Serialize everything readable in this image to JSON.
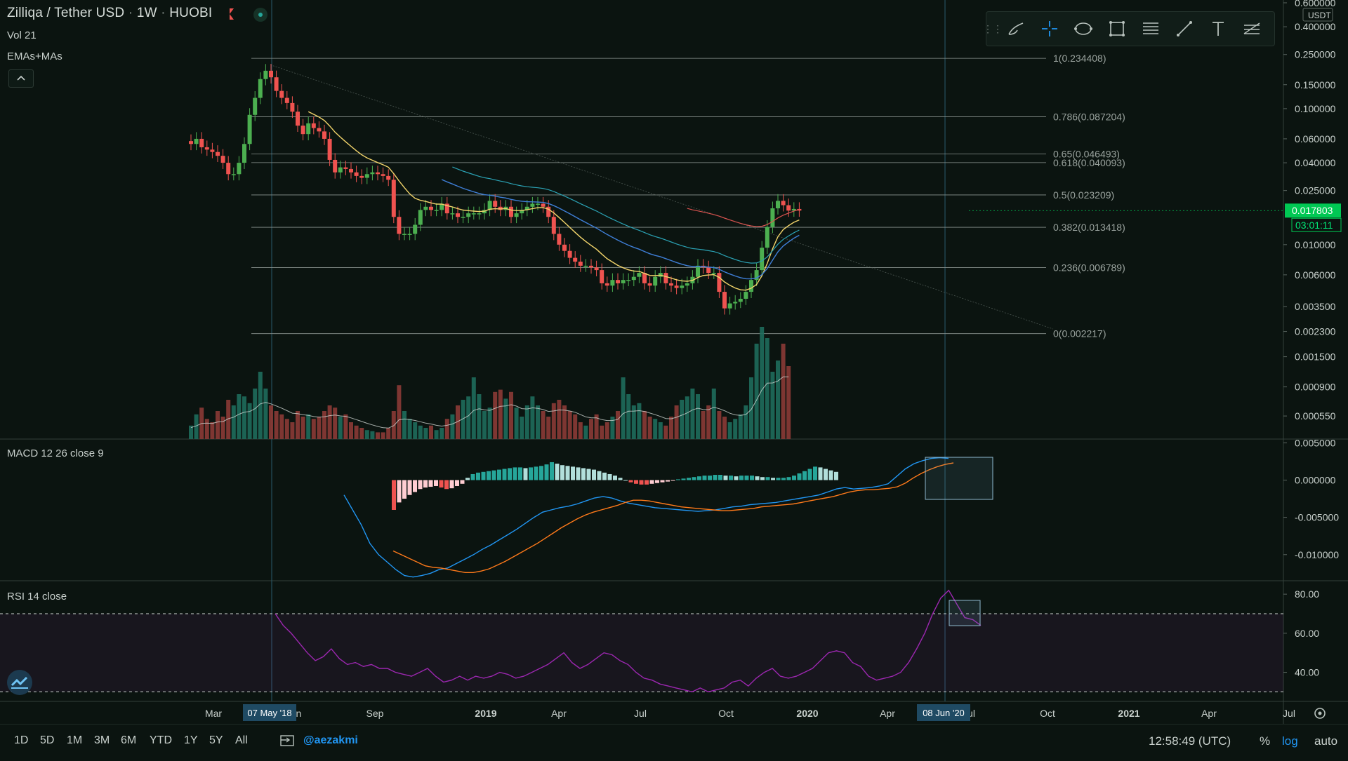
{
  "header": {
    "symbol": "Zilliqa / Tether USD",
    "interval": "1W",
    "exchange": "HUOBI",
    "sep": "·",
    "volume_legend": "Vol 21",
    "ma_legend": "EMAs+MAs",
    "collapse_icon": "^"
  },
  "toolbar": {
    "tools": [
      "brush-icon",
      "crosshair-icon",
      "ellipse-icon",
      "rectangle-icon",
      "fib-lines-icon",
      "trend-line-icon",
      "text-icon",
      "path-icon"
    ]
  },
  "price_axis": {
    "currency": "USDT",
    "labels": [
      "0.600000",
      "0.400000",
      "0.250000",
      "0.150000",
      "0.100000",
      "0.060000",
      "0.040000",
      "0.025000",
      "0.010000",
      "0.006000",
      "0.003500",
      "0.002300",
      "0.001500",
      "0.000900",
      "0.000550"
    ],
    "last_price": "0.017803",
    "countdown": "03:01:11",
    "last_price_color": "#00c853"
  },
  "macd": {
    "legend": "MACD 12 26 close 9",
    "axis_labels": [
      "0.005000",
      "0.000000",
      "-0.005000",
      "-0.010000"
    ]
  },
  "rsi": {
    "legend": "RSI 14 close",
    "axis_labels": [
      "80.00",
      "60.00",
      "40.00"
    ]
  },
  "time_axis": {
    "labels": [
      "Mar",
      "Jun",
      "Sep",
      "2019",
      "Apr",
      "Jul",
      "Oct",
      "2020",
      "Apr",
      "Jul",
      "Oct",
      "2021",
      "Apr",
      "Jul"
    ],
    "highlight_left": "07 May '18",
    "highlight_right": "08 Jun '20"
  },
  "bottom_bar": {
    "timeframes": [
      "1D",
      "5D",
      "1M",
      "3M",
      "6M",
      "YTD",
      "1Y",
      "5Y",
      "All"
    ],
    "author": "@aezakmi",
    "clock": "12:58:49 (UTC)",
    "percent": "%",
    "log": "log",
    "auto": "auto"
  },
  "colors": {
    "background": "#0b1410",
    "up": "#4caf50",
    "down": "#ef5350",
    "volume_up": "#1e6b5c",
    "volume_down": "#8b3a36",
    "ema_fast": "#f2d46b",
    "ma_blue": "#3f7fd8",
    "ma_teal": "#2ba3b5",
    "ma_red": "#d9534f",
    "macd_line": "#2196f3",
    "signal_line": "#ff7a1a",
    "rsi_line": "#9c27b0",
    "accent": "#2196f3"
  },
  "chart_data": [
    {
      "type": "candlestick",
      "scale": "log",
      "ylim": [
        0.00045,
        0.6
      ],
      "fib_levels": [
        {
          "ratio": "1",
          "price": 0.234408,
          "label": "1(0.234408)"
        },
        {
          "ratio": "0.786",
          "price": 0.087204,
          "label": "0.786(0.087204)"
        },
        {
          "ratio": "0.65",
          "price": 0.046493,
          "label": "0.65(0.046493)"
        },
        {
          "ratio": "0.618",
          "price": 0.040093,
          "label": "0.618(0.040093)"
        },
        {
          "ratio": "0.5",
          "price": 0.023209,
          "label": "0.5(0.023209)"
        },
        {
          "ratio": "0.382",
          "price": 0.013418,
          "label": "0.382(0.013418)"
        },
        {
          "ratio": "0.236",
          "price": 0.006789,
          "label": "0.236(0.006789)"
        },
        {
          "ratio": "0",
          "price": 0.002217,
          "label": "0(0.002217)"
        }
      ],
      "close_prices": [
        0.055,
        0.06,
        0.052,
        0.05,
        0.048,
        0.045,
        0.04,
        0.033,
        0.033,
        0.04,
        0.055,
        0.09,
        0.12,
        0.165,
        0.19,
        0.17,
        0.135,
        0.12,
        0.11,
        0.095,
        0.075,
        0.065,
        0.078,
        0.072,
        0.068,
        0.06,
        0.042,
        0.034,
        0.037,
        0.036,
        0.034,
        0.032,
        0.031,
        0.033,
        0.034,
        0.033,
        0.032,
        0.03,
        0.016,
        0.012,
        0.012,
        0.012,
        0.014,
        0.018,
        0.019,
        0.018,
        0.018,
        0.02,
        0.017,
        0.017,
        0.016,
        0.016,
        0.017,
        0.017,
        0.017,
        0.018,
        0.021,
        0.019,
        0.018,
        0.019,
        0.016,
        0.017,
        0.018,
        0.019,
        0.02,
        0.02,
        0.019,
        0.016,
        0.012,
        0.01,
        0.009,
        0.008,
        0.0075,
        0.007,
        0.007,
        0.0068,
        0.0065,
        0.0052,
        0.005,
        0.0055,
        0.0052,
        0.0055,
        0.0055,
        0.0058,
        0.0062,
        0.0052,
        0.005,
        0.0058,
        0.0062,
        0.0052,
        0.005,
        0.0048,
        0.005,
        0.0052,
        0.0058,
        0.007,
        0.0068,
        0.0062,
        0.0062,
        0.0045,
        0.0034,
        0.0037,
        0.0038,
        0.004,
        0.0045,
        0.0055,
        0.0065,
        0.0095,
        0.0135,
        0.0185,
        0.021,
        0.0195,
        0.0178,
        0.0183,
        0.0178
      ],
      "volume_relative": [
        0.12,
        0.22,
        0.28,
        0.18,
        0.15,
        0.25,
        0.2,
        0.35,
        0.3,
        0.4,
        0.38,
        0.32,
        0.45,
        0.6,
        0.45,
        0.3,
        0.25,
        0.22,
        0.18,
        0.15,
        0.25,
        0.2,
        0.22,
        0.18,
        0.2,
        0.25,
        0.3,
        0.28,
        0.2,
        0.22,
        0.15,
        0.12,
        0.1,
        0.08,
        0.07,
        0.06,
        0.06,
        0.1,
        0.25,
        0.48,
        0.25,
        0.18,
        0.15,
        0.12,
        0.1,
        0.12,
        0.08,
        0.1,
        0.18,
        0.22,
        0.3,
        0.35,
        0.38,
        0.55,
        0.4,
        0.25,
        0.28,
        0.42,
        0.44,
        0.36,
        0.42,
        0.28,
        0.2,
        0.3,
        0.38,
        0.3,
        0.25,
        0.2,
        0.32,
        0.35,
        0.3,
        0.25,
        0.22,
        0.15,
        0.12,
        0.18,
        0.22,
        0.12,
        0.15,
        0.2,
        0.25,
        0.55,
        0.4,
        0.3,
        0.32,
        0.25,
        0.2,
        0.18,
        0.15,
        0.12,
        0.2,
        0.3,
        0.35,
        0.38,
        0.45,
        0.4,
        0.25,
        0.3,
        0.45,
        0.25,
        0.2,
        0.15,
        0.18,
        0.22,
        0.3,
        0.55,
        0.85,
        1.0,
        0.9,
        0.6,
        0.7,
        0.85,
        0.65
      ]
    },
    {
      "type": "macd",
      "ylim": [
        -0.0135,
        0.0055
      ],
      "macd_line": [
        -0.002,
        -0.004,
        -0.006,
        -0.0085,
        -0.01,
        -0.011,
        -0.012,
        -0.0128,
        -0.013,
        -0.0128,
        -0.0125,
        -0.012,
        -0.0118,
        -0.0112,
        -0.0106,
        -0.01,
        -0.0093,
        -0.0087,
        -0.008,
        -0.0073,
        -0.0066,
        -0.0058,
        -0.005,
        -0.0043,
        -0.004,
        -0.0037,
        -0.0035,
        -0.0032,
        -0.0028,
        -0.0024,
        -0.0022,
        -0.0024,
        -0.0028,
        -0.0031,
        -0.0033,
        -0.0035,
        -0.0037,
        -0.0038,
        -0.0039,
        -0.004,
        -0.0041,
        -0.0042,
        -0.0041,
        -0.004,
        -0.0038,
        -0.0036,
        -0.0035,
        -0.0033,
        -0.0032,
        -0.0031,
        -0.003,
        -0.0028,
        -0.0026,
        -0.0024,
        -0.0022,
        -0.002,
        -0.0016,
        -0.0012,
        -0.001,
        -0.0012,
        -0.0011,
        -0.001,
        -0.0008,
        -0.0005,
        0.0005,
        0.0015,
        0.0022,
        0.0026,
        0.0029,
        0.003,
        0.0029
      ],
      "signal_line": [
        -0.0095,
        -0.01,
        -0.0105,
        -0.011,
        -0.0115,
        -0.0117,
        -0.0118,
        -0.012,
        -0.0122,
        -0.0124,
        -0.0124,
        -0.0122,
        -0.0119,
        -0.0114,
        -0.0109,
        -0.0103,
        -0.0097,
        -0.0091,
        -0.0085,
        -0.0078,
        -0.0071,
        -0.0064,
        -0.0058,
        -0.0052,
        -0.0047,
        -0.0043,
        -0.004,
        -0.0037,
        -0.0034,
        -0.003,
        -0.0027,
        -0.0027,
        -0.0028,
        -0.003,
        -0.0032,
        -0.0034,
        -0.0036,
        -0.0037,
        -0.0038,
        -0.0039,
        -0.004,
        -0.0041,
        -0.0041,
        -0.004,
        -0.0039,
        -0.0038,
        -0.0036,
        -0.0035,
        -0.0034,
        -0.0033,
        -0.0032,
        -0.003,
        -0.0028,
        -0.0026,
        -0.0024,
        -0.0022,
        -0.0019,
        -0.0016,
        -0.0014,
        -0.0013,
        -0.0013,
        -0.0012,
        -0.0011,
        -0.0009,
        -0.0004,
        0.0003,
        0.0009,
        0.0014,
        0.0018,
        0.0021,
        0.0023
      ],
      "histogram": [
        -0.004,
        -0.003,
        -0.0025,
        -0.002,
        -0.0016,
        -0.0012,
        -0.001,
        -0.0009,
        -0.0008,
        -0.001,
        -0.0012,
        -0.0011,
        -0.0008,
        -0.0005,
        0.0003,
        0.0008,
        0.001,
        0.0011,
        0.0012,
        0.0013,
        0.0014,
        0.0015,
        0.0016,
        0.0017,
        0.0017,
        0.0016,
        0.0017,
        0.0018,
        0.0019,
        0.0021,
        0.0024,
        0.0022,
        0.002,
        0.0019,
        0.0018,
        0.0017,
        0.0016,
        0.0015,
        0.0014,
        0.0012,
        0.001,
        0.0008,
        0.0006,
        0.0003,
        0.0,
        -0.0003,
        -0.0005,
        -0.0006,
        -0.0006,
        -0.0005,
        -0.0004,
        -0.0003,
        -0.0002,
        -0.0001,
        0.0001,
        0.0002,
        0.0003,
        0.0004,
        0.0005,
        0.0006,
        0.0006,
        0.0007,
        0.0007,
        0.0006,
        0.0006,
        0.0005,
        0.0006,
        0.0006,
        0.0006,
        0.0005,
        0.0004,
        0.0004,
        0.0003,
        0.0003,
        0.0003,
        0.0004,
        0.0006,
        0.0009,
        0.0012,
        0.0015,
        0.0018,
        0.0017,
        0.0015,
        0.0013,
        0.0011
      ]
    },
    {
      "type": "line",
      "name_text": "RSI",
      "ylim": [
        28,
        84
      ],
      "bands": [
        70,
        30
      ],
      "values": [
        70,
        64,
        60,
        55,
        50,
        46,
        48,
        52,
        47,
        44,
        45,
        43,
        44,
        42,
        42,
        40,
        39,
        38,
        40,
        42,
        38,
        35,
        36,
        38,
        36,
        38,
        37,
        38,
        40,
        39,
        37,
        38,
        40,
        42,
        44,
        47,
        50,
        45,
        42,
        44,
        47,
        50,
        49,
        46,
        44,
        40,
        37,
        36,
        34,
        33,
        32,
        31,
        30,
        32,
        30,
        31,
        32,
        35,
        36,
        33,
        37,
        40,
        42,
        38,
        37,
        38,
        40,
        42,
        46,
        50,
        51,
        50,
        45,
        43,
        38,
        36,
        37,
        38,
        40,
        45,
        52,
        60,
        70,
        78,
        82,
        75,
        68,
        67,
        64
      ]
    }
  ]
}
